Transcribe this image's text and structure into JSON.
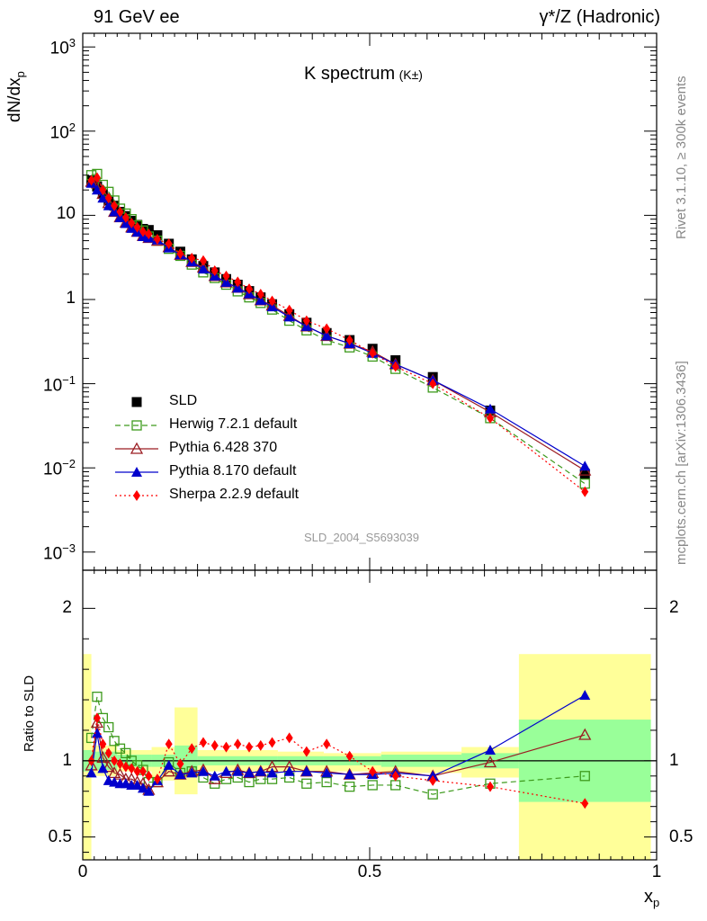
{
  "header": {
    "left": "91 GeV ee",
    "right": "γ*/Z (Hadronic)"
  },
  "plot_title": {
    "main": "K spectrum",
    "sub": "(K±)"
  },
  "axis": {
    "ylabel_main": "dN/dx",
    "ylabel_main_sub": "p",
    "ylabel_ratio": "Ratio to SLD",
    "xlabel": "x",
    "xlabel_sub": "p"
  },
  "side_text": {
    "rivet": "Rivet 3.1.10, ≥ 300k events",
    "mcplots": "mcplots.cern.ch [arXiv:1306.3436]"
  },
  "analysis_tag": "SLD_2004_S5693039",
  "colors": {
    "data": "#000000",
    "herwig": "#3d9a1c",
    "pythia6": "#9b1c22",
    "pythia8": "#0000cc",
    "sherpa": "#ff0000",
    "band_inner": "#99ff99",
    "band_outer": "#ffff99"
  },
  "chart_data": [
    {
      "type": "line",
      "title": "K spectrum (K±)",
      "xlabel": "x_p",
      "ylabel": "dN/dx_p",
      "yscale": "log",
      "xlim": [
        0,
        1
      ],
      "ylim": [
        0.0005,
        1500
      ],
      "y_tick_labels": [
        "10^-3",
        "10^-2",
        "10^-1",
        "1",
        "10",
        "10^2",
        "10^3"
      ],
      "legend_position": "lower-left",
      "x": [
        0.015,
        0.025,
        0.035,
        0.045,
        0.055,
        0.065,
        0.075,
        0.085,
        0.095,
        0.105,
        0.115,
        0.13,
        0.15,
        0.17,
        0.19,
        0.21,
        0.23,
        0.25,
        0.27,
        0.29,
        0.31,
        0.33,
        0.36,
        0.39,
        0.425,
        0.465,
        0.505,
        0.545,
        0.61,
        0.71,
        0.875
      ],
      "series": [
        {
          "name": "SLD",
          "key": "data",
          "marker": "square",
          "values": [
            26,
            22,
            18,
            15,
            13,
            11,
            9.8,
            8.6,
            7.7,
            6.9,
            6.7,
            5.8,
            4.6,
            3.7,
            3.0,
            2.5,
            2.1,
            1.75,
            1.5,
            1.26,
            1.06,
            0.88,
            0.67,
            0.53,
            0.4,
            0.33,
            0.26,
            0.19,
            0.12,
            0.048,
            0.0085
          ]
        },
        {
          "name": "Herwig 7.2.1 default",
          "key": "herwig",
          "marker": "open-square",
          "values": [
            30,
            31,
            23,
            19,
            15,
            12,
            10.5,
            9.0,
            7.6,
            6.6,
            5.6,
            5.0,
            4.0,
            3.3,
            2.6,
            2.1,
            1.8,
            1.5,
            1.25,
            1.06,
            0.91,
            0.76,
            0.56,
            0.43,
            0.33,
            0.27,
            0.21,
            0.15,
            0.09,
            0.039,
            0.0065
          ]
        },
        {
          "name": "Pythia 6.428 370",
          "key": "pythia6",
          "marker": "open-triangle",
          "values": [
            25,
            24,
            18,
            14,
            11,
            9.5,
            8.2,
            7.2,
            6.4,
            5.7,
            5.4,
            5.0,
            4.2,
            3.4,
            2.8,
            2.4,
            1.9,
            1.6,
            1.38,
            1.16,
            0.98,
            0.85,
            0.64,
            0.48,
            0.37,
            0.3,
            0.24,
            0.17,
            0.11,
            0.046,
            0.0093
          ]
        },
        {
          "name": "Pythia 8.170 default",
          "key": "pythia8",
          "marker": "triangle",
          "values": [
            24,
            20,
            16,
            13,
            11,
            9.4,
            8.0,
            7.0,
            6.3,
            5.6,
            5.4,
            5.1,
            4.1,
            3.4,
            2.8,
            2.3,
            1.9,
            1.6,
            1.37,
            1.17,
            0.98,
            0.82,
            0.62,
            0.48,
            0.37,
            0.3,
            0.23,
            0.17,
            0.11,
            0.05,
            0.0105
          ]
        },
        {
          "name": "Sherpa 2.2.9 default",
          "key": "sherpa",
          "marker": "diamond",
          "values": [
            26,
            28,
            20,
            16,
            13,
            11,
            9.4,
            8.1,
            7.2,
            6.4,
            6.0,
            5.2,
            4.6,
            3.5,
            3.1,
            2.9,
            2.2,
            1.9,
            1.62,
            1.34,
            1.16,
            0.96,
            0.75,
            0.56,
            0.45,
            0.33,
            0.23,
            0.16,
            0.1,
            0.039,
            0.0052
          ]
        }
      ]
    },
    {
      "type": "line",
      "title": "Ratio to SLD",
      "xlabel": "x_p",
      "ylabel": "Ratio to SLD",
      "xlim": [
        0,
        1
      ],
      "ylim": [
        0.35,
        2.25
      ],
      "x_tick_labels": [
        "0",
        "0.5",
        "1"
      ],
      "y_tick_labels": [
        "0.5",
        "1",
        "2"
      ],
      "reference_line": 1,
      "x": [
        0.015,
        0.025,
        0.035,
        0.045,
        0.055,
        0.065,
        0.075,
        0.085,
        0.095,
        0.105,
        0.115,
        0.13,
        0.15,
        0.17,
        0.19,
        0.21,
        0.23,
        0.25,
        0.27,
        0.29,
        0.31,
        0.33,
        0.36,
        0.39,
        0.425,
        0.465,
        0.505,
        0.545,
        0.61,
        0.71,
        0.875
      ],
      "series": [
        {
          "name": "Herwig 7.2.1 default",
          "key": "herwig",
          "marker": "open-square",
          "values": [
            1.15,
            1.42,
            1.28,
            1.22,
            1.13,
            1.08,
            1.05,
            1.0,
            0.97,
            0.94,
            0.86,
            0.86,
            0.99,
            0.92,
            0.93,
            0.89,
            0.85,
            0.88,
            0.89,
            0.86,
            0.88,
            0.88,
            0.89,
            0.85,
            0.86,
            0.83,
            0.84,
            0.84,
            0.78,
            0.85,
            0.9
          ]
        },
        {
          "name": "Pythia 6.428 370",
          "key": "pythia6",
          "marker": "open-triangle",
          "values": [
            0.97,
            1.25,
            1.02,
            0.96,
            0.92,
            0.91,
            0.88,
            0.88,
            0.86,
            0.85,
            0.81,
            0.86,
            0.93,
            0.91,
            0.93,
            0.94,
            0.88,
            0.92,
            0.94,
            0.92,
            0.93,
            0.96,
            0.96,
            0.93,
            0.93,
            0.91,
            0.92,
            0.93,
            0.9,
            0.99,
            1.17
          ]
        },
        {
          "name": "Pythia 8.170 default",
          "key": "pythia8",
          "marker": "triangle",
          "values": [
            0.92,
            1.18,
            0.95,
            0.87,
            0.86,
            0.85,
            0.85,
            0.84,
            0.84,
            0.82,
            0.8,
            0.87,
            0.97,
            0.91,
            0.92,
            0.93,
            0.9,
            0.93,
            0.93,
            0.92,
            0.93,
            0.92,
            0.93,
            0.93,
            0.92,
            0.91,
            0.91,
            0.92,
            0.9,
            1.07,
            1.43
          ]
        },
        {
          "name": "Sherpa 2.2.9 default",
          "key": "sherpa",
          "marker": "diamond",
          "values": [
            1.0,
            1.28,
            1.11,
            1.05,
            1.0,
            0.98,
            0.96,
            0.95,
            0.93,
            0.93,
            0.9,
            0.88,
            1.11,
            0.98,
            1.08,
            1.12,
            1.1,
            1.09,
            1.11,
            1.09,
            1.1,
            1.12,
            1.15,
            1.06,
            1.11,
            1.03,
            0.93,
            0.9,
            0.87,
            0.83,
            0.72
          ]
        }
      ],
      "data_band_inner": [
        {
          "x0": 0.0,
          "x1": 0.015,
          "lo": 0.93,
          "hi": 1.07
        },
        {
          "x0": 0.015,
          "x1": 0.06,
          "lo": 0.94,
          "hi": 1.06
        },
        {
          "x0": 0.06,
          "x1": 0.12,
          "lo": 0.96,
          "hi": 1.04
        },
        {
          "x0": 0.12,
          "x1": 0.16,
          "lo": 0.96,
          "hi": 1.04
        },
        {
          "x0": 0.16,
          "x1": 0.2,
          "lo": 0.9,
          "hi": 1.1
        },
        {
          "x0": 0.2,
          "x1": 0.34,
          "lo": 0.97,
          "hi": 1.03
        },
        {
          "x0": 0.34,
          "x1": 0.42,
          "lo": 0.97,
          "hi": 1.03
        },
        {
          "x0": 0.42,
          "x1": 0.52,
          "lo": 0.97,
          "hi": 1.03
        },
        {
          "x0": 0.52,
          "x1": 0.66,
          "lo": 0.96,
          "hi": 1.04
        },
        {
          "x0": 0.66,
          "x1": 0.76,
          "lo": 0.95,
          "hi": 1.05
        },
        {
          "x0": 0.76,
          "x1": 0.99,
          "lo": 0.73,
          "hi": 1.27
        }
      ],
      "data_band_outer": [
        {
          "x0": 0.0,
          "x1": 0.015,
          "lo": 0.35,
          "hi": 1.7
        },
        {
          "x0": 0.015,
          "x1": 0.06,
          "lo": 0.9,
          "hi": 1.1
        },
        {
          "x0": 0.06,
          "x1": 0.12,
          "lo": 0.93,
          "hi": 1.07
        },
        {
          "x0": 0.12,
          "x1": 0.16,
          "lo": 0.87,
          "hi": 1.09
        },
        {
          "x0": 0.16,
          "x1": 0.2,
          "lo": 0.78,
          "hi": 1.35
        },
        {
          "x0": 0.2,
          "x1": 0.34,
          "lo": 0.93,
          "hi": 1.07
        },
        {
          "x0": 0.34,
          "x1": 0.42,
          "lo": 0.93,
          "hi": 1.06
        },
        {
          "x0": 0.42,
          "x1": 0.52,
          "lo": 0.93,
          "hi": 1.05
        },
        {
          "x0": 0.52,
          "x1": 0.66,
          "lo": 0.92,
          "hi": 1.06
        },
        {
          "x0": 0.66,
          "x1": 0.76,
          "lo": 0.89,
          "hi": 1.09
        },
        {
          "x0": 0.76,
          "x1": 0.99,
          "lo": 0.35,
          "hi": 1.7
        }
      ]
    }
  ]
}
